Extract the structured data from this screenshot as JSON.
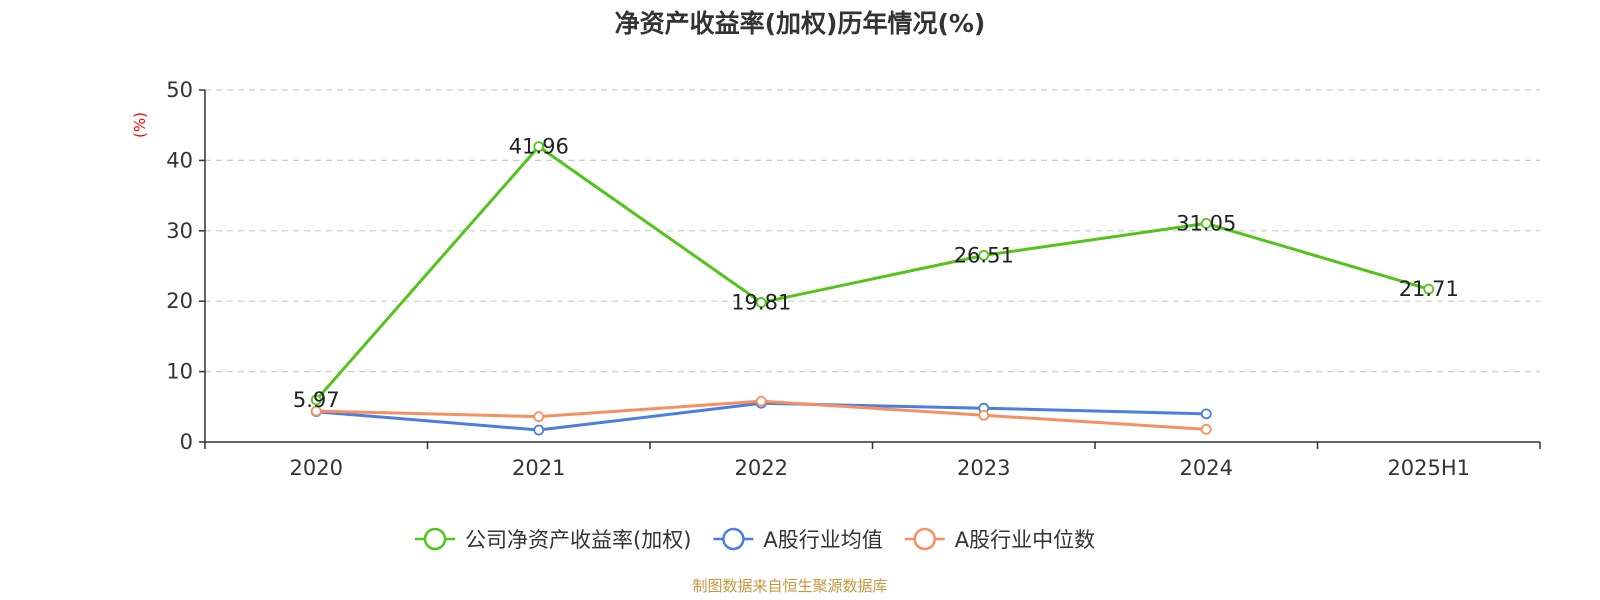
{
  "chart_data": {
    "type": "line",
    "title": "净资产收益率(加权)历年情况(%)",
    "ylabel": "(%)",
    "xlabel": "",
    "categories": [
      "2020",
      "2021",
      "2022",
      "2023",
      "2024",
      "2025H1"
    ],
    "ylim": [
      0,
      50
    ],
    "yticks": [
      0,
      10,
      20,
      30,
      40,
      50
    ],
    "grid": true,
    "legend_position": "bottom",
    "series": [
      {
        "name": "公司净资产收益率(加权)",
        "color": "#52c41a",
        "values": [
          5.97,
          41.96,
          19.81,
          26.51,
          31.05,
          21.71
        ],
        "labels": true
      },
      {
        "name": "A股行业均值",
        "color": "#4a7ee0",
        "values": [
          4.3,
          1.7,
          5.5,
          4.8,
          4.0,
          null
        ],
        "labels": false
      },
      {
        "name": "A股行业中位数",
        "color": "#f59062",
        "values": [
          4.4,
          3.6,
          5.8,
          3.8,
          1.8,
          null
        ],
        "labels": false
      }
    ],
    "data_labels": [
      "5.97",
      "41.96",
      "19.81",
      "26.51",
      "31.05",
      "21.71"
    ]
  },
  "source": "制图数据来自恒生聚源数据库",
  "colors": {
    "axis": "#333333",
    "grid": "#cccccc",
    "ylabel": "#ff0000",
    "source": "#c8963e"
  }
}
